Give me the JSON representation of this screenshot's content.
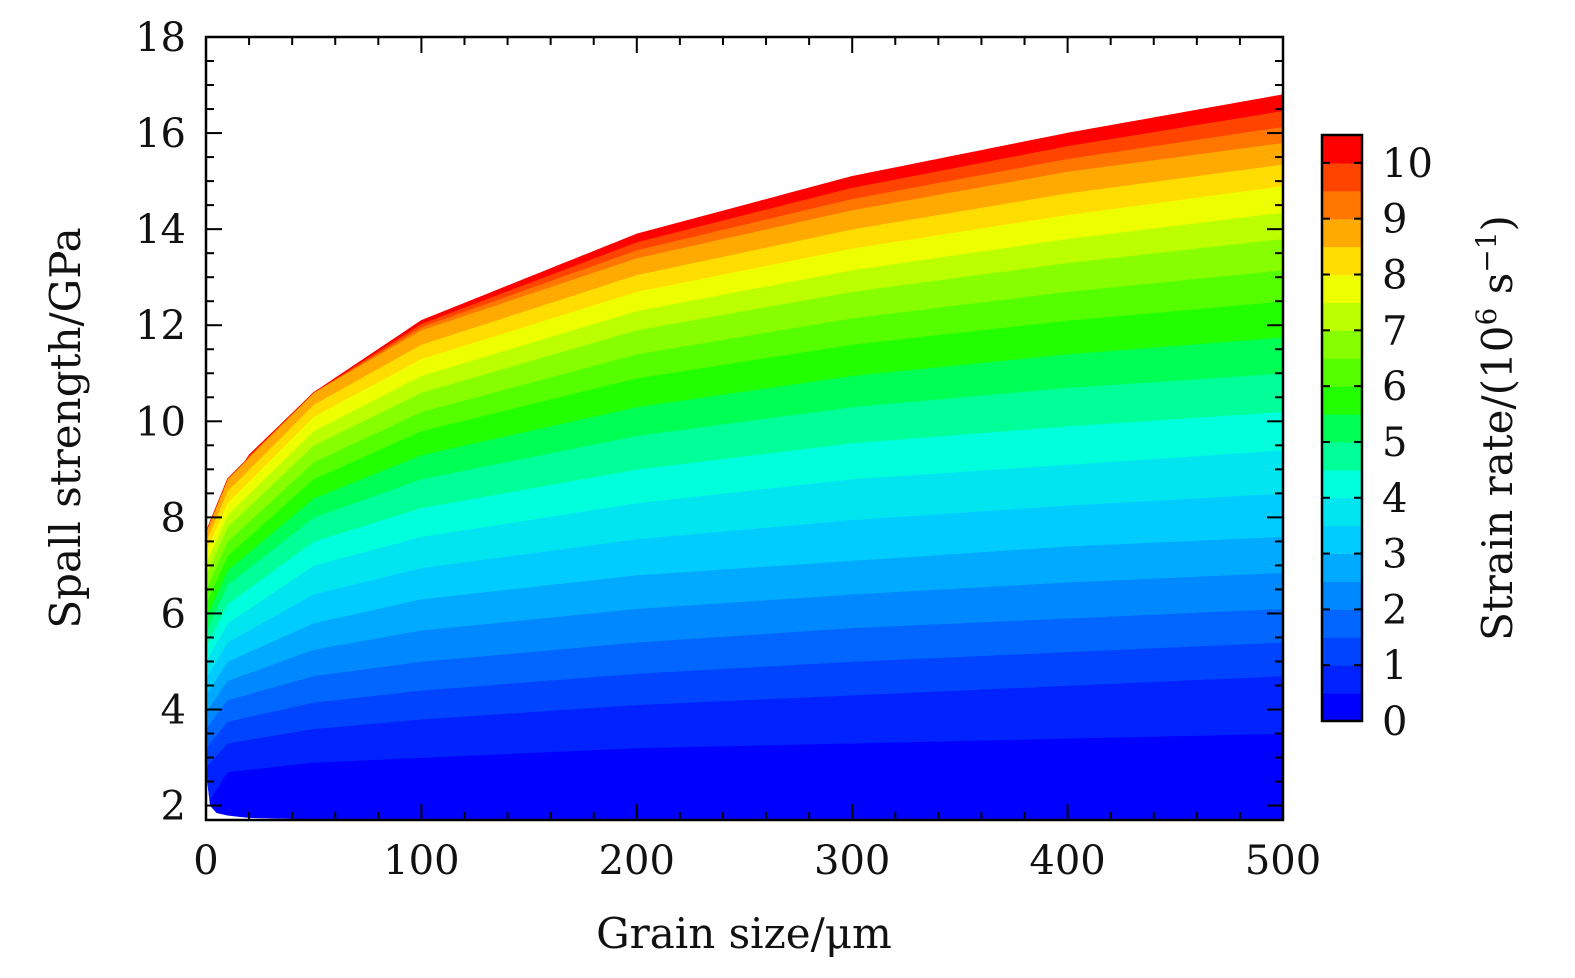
{
  "chart_data": {
    "type": "heatmap",
    "subtype": "filled-contour",
    "title": "",
    "xlabel": "Grain size/μm",
    "ylabel": "Spall strength/GPa",
    "xlim": [
      0,
      500
    ],
    "ylim": [
      1.7,
      18
    ],
    "x_ticks": [
      0,
      100,
      200,
      300,
      400,
      500
    ],
    "y_ticks": [
      2,
      4,
      6,
      8,
      10,
      12,
      14,
      16,
      18
    ],
    "grid": false,
    "colorbar": {
      "label_main": "Strain rate/(10",
      "label_exp1": "6",
      "label_mid": " s",
      "label_exp2": "−1",
      "label_close": ")",
      "range": [
        0,
        10.5
      ],
      "ticks": [
        0,
        1,
        2,
        3,
        4,
        5,
        6,
        7,
        8,
        9,
        10
      ],
      "placement": "right",
      "levels": 21,
      "colors": [
        "#0000ff",
        "#0022ff",
        "#0044ff",
        "#0066ff",
        "#0088ff",
        "#00aaff",
        "#00ccff",
        "#00e5f0",
        "#00ffdd",
        "#00ff99",
        "#00ff55",
        "#22ff00",
        "#55ff00",
        "#88ff00",
        "#bbff00",
        "#eeff00",
        "#ffdd00",
        "#ffaa00",
        "#ff7700",
        "#ff4400",
        "#ff0000"
      ]
    },
    "lower_boundary": {
      "grain_size": [
        0.5,
        2,
        5,
        10,
        20,
        50,
        100,
        200,
        300,
        400,
        500
      ],
      "spall_strength": [
        2.6,
        2.0,
        1.85,
        1.8,
        1.75,
        1.72,
        1.72,
        1.72,
        1.72,
        1.72,
        1.72
      ]
    },
    "contour_lines": [
      {
        "strain_rate": 0.5,
        "grain_size": [
          0,
          10,
          50,
          100,
          200,
          300,
          400,
          500
        ],
        "spall_strength": [
          2.0,
          2.7,
          2.9,
          3.0,
          3.2,
          3.3,
          3.4,
          3.5
        ]
      },
      {
        "strain_rate": 1,
        "grain_size": [
          0,
          10,
          50,
          100,
          200,
          300,
          400,
          500
        ],
        "spall_strength": [
          2.8,
          3.3,
          3.6,
          3.8,
          4.1,
          4.3,
          4.5,
          4.7
        ]
      },
      {
        "strain_rate": 2,
        "grain_size": [
          0,
          10,
          50,
          100,
          200,
          300,
          400,
          500
        ],
        "spall_strength": [
          3.6,
          4.2,
          4.7,
          5.0,
          5.4,
          5.7,
          5.9,
          6.1
        ]
      },
      {
        "strain_rate": 3,
        "grain_size": [
          0,
          10,
          50,
          100,
          200,
          300,
          400,
          500
        ],
        "spall_strength": [
          4.3,
          5.0,
          5.8,
          6.3,
          6.8,
          7.1,
          7.4,
          7.6
        ]
      },
      {
        "strain_rate": 4,
        "grain_size": [
          0,
          10,
          50,
          100,
          200,
          300,
          400,
          500
        ],
        "spall_strength": [
          5.0,
          5.8,
          7.0,
          7.6,
          8.3,
          8.8,
          9.1,
          9.4
        ]
      },
      {
        "strain_rate": 5,
        "grain_size": [
          0,
          10,
          50,
          100,
          200,
          300,
          400,
          500
        ],
        "spall_strength": [
          5.6,
          6.6,
          8.0,
          8.8,
          9.7,
          10.3,
          10.7,
          11.0
        ]
      },
      {
        "strain_rate": 6,
        "grain_size": [
          0,
          10,
          50,
          100,
          200,
          300,
          400,
          500
        ],
        "spall_strength": [
          6.2,
          7.2,
          8.8,
          9.8,
          10.9,
          11.6,
          12.1,
          12.5
        ]
      },
      {
        "strain_rate": 7,
        "grain_size": [
          0,
          10,
          50,
          100,
          200,
          300,
          400,
          500
        ],
        "spall_strength": [
          6.8,
          7.8,
          9.5,
          10.6,
          11.9,
          12.7,
          13.3,
          13.8
        ]
      },
      {
        "strain_rate": 8,
        "grain_size": [
          0,
          10,
          50,
          100,
          200,
          300,
          400,
          500
        ],
        "spall_strength": [
          7.3,
          8.3,
          10.1,
          11.3,
          12.7,
          13.6,
          14.3,
          14.9
        ]
      },
      {
        "strain_rate": 9,
        "grain_size": [
          0,
          10,
          50,
          100,
          200,
          300,
          400,
          500
        ],
        "spall_strength": [
          7.7,
          8.8,
          10.6,
          11.9,
          13.4,
          14.4,
          15.2,
          15.8
        ]
      },
      {
        "strain_rate": 10.5,
        "grain_size": [
          0.5,
          2,
          5,
          10,
          20,
          50,
          100,
          200,
          300,
          400,
          500
        ],
        "spall_strength": [
          6.2,
          7.3,
          8.0,
          8.6,
          9.3,
          10.6,
          12.1,
          13.9,
          15.1,
          16.0,
          16.8
        ]
      }
    ]
  }
}
